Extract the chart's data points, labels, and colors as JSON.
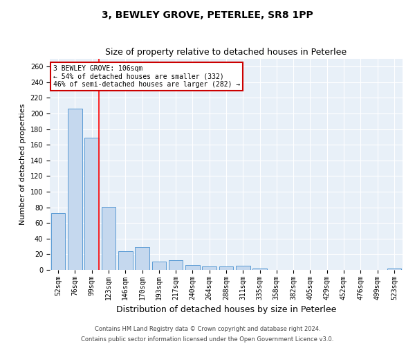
{
  "title": "3, BEWLEY GROVE, PETERLEE, SR8 1PP",
  "subtitle": "Size of property relative to detached houses in Peterlee",
  "xlabel": "Distribution of detached houses by size in Peterlee",
  "ylabel": "Number of detached properties",
  "categories": [
    "52sqm",
    "76sqm",
    "99sqm",
    "123sqm",
    "146sqm",
    "170sqm",
    "193sqm",
    "217sqm",
    "240sqm",
    "264sqm",
    "288sqm",
    "311sqm",
    "335sqm",
    "358sqm",
    "382sqm",
    "405sqm",
    "429sqm",
    "452sqm",
    "476sqm",
    "499sqm",
    "523sqm"
  ],
  "values": [
    73,
    206,
    169,
    81,
    24,
    29,
    11,
    12,
    6,
    4,
    4,
    5,
    2,
    0,
    0,
    0,
    0,
    0,
    0,
    0,
    2
  ],
  "bar_color": "#c5d8ee",
  "bar_edge_color": "#5b9bd5",
  "red_line_x": 2.425,
  "annotation_line1": "3 BEWLEY GROVE: 106sqm",
  "annotation_line2": "← 54% of detached houses are smaller (332)",
  "annotation_line3": "46% of semi-detached houses are larger (282) →",
  "annotation_box_color": "#ffffff",
  "annotation_box_edge": "#cc0000",
  "footer_line1": "Contains HM Land Registry data © Crown copyright and database right 2024.",
  "footer_line2": "Contains public sector information licensed under the Open Government Licence v3.0.",
  "ylim": [
    0,
    270
  ],
  "yticks": [
    0,
    20,
    40,
    60,
    80,
    100,
    120,
    140,
    160,
    180,
    200,
    220,
    240,
    260
  ],
  "bg_color": "#e8f0f8",
  "grid_color": "#ffffff",
  "title_fontsize": 10,
  "subtitle_fontsize": 9,
  "tick_fontsize": 7,
  "ylabel_fontsize": 8,
  "xlabel_fontsize": 9,
  "footer_fontsize": 6
}
